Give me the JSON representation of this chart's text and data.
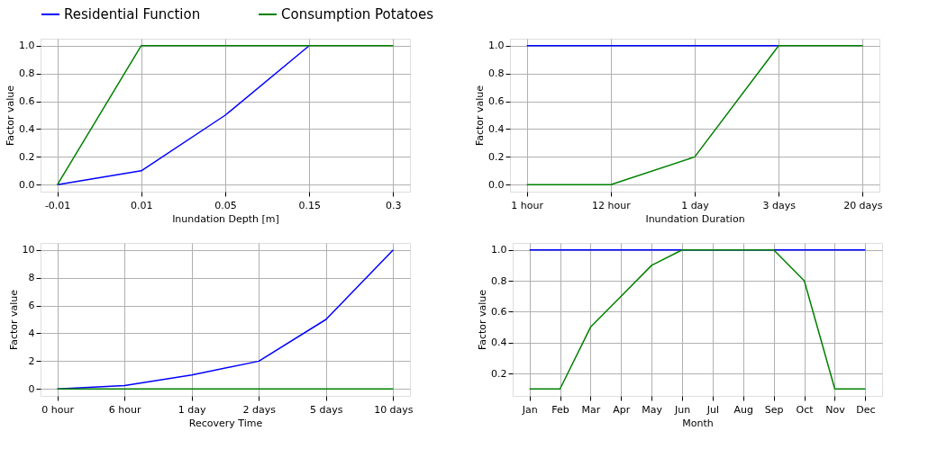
{
  "chart_data": [
    {
      "type": "line",
      "xlabel": "Inundation Depth [m]",
      "ylabel": "Factor value",
      "categories": [
        "-0.01",
        "0.01",
        "0.05",
        "0.15",
        "0.3"
      ],
      "series": [
        {
          "name": "Residential Function",
          "color": "#0000ff",
          "values": [
            0,
            0.1,
            0.5,
            1,
            null
          ]
        },
        {
          "name": "Consumption Potatoes",
          "color": "#008000",
          "values": [
            0,
            1,
            1,
            1,
            1
          ]
        }
      ],
      "ylim": [
        -0.05,
        1.05
      ],
      "yticks": [
        {
          "value": 0,
          "label": "0.0"
        },
        {
          "value": 0.2,
          "label": "0.2"
        },
        {
          "value": 0.4,
          "label": "0.4"
        },
        {
          "value": 0.6,
          "label": "0.6"
        },
        {
          "value": 0.8,
          "label": "0.8"
        },
        {
          "value": 1,
          "label": "1.0"
        }
      ],
      "grid": true,
      "legend": "top"
    },
    {
      "type": "line",
      "xlabel": "Inundation Duration",
      "ylabel": "Factor value",
      "categories": [
        "1 hour",
        "12 hour",
        "1 day",
        "3 days",
        "20 days"
      ],
      "series": [
        {
          "name": "Residential Function",
          "color": "#0000ff",
          "values": [
            1,
            1,
            1,
            1,
            null
          ]
        },
        {
          "name": "Consumption Potatoes",
          "color": "#008000",
          "values": [
            0,
            0,
            0.2,
            1,
            1
          ]
        }
      ],
      "ylim": [
        -0.05,
        1.05
      ],
      "yticks": [
        {
          "value": 0,
          "label": "0.0"
        },
        {
          "value": 0.2,
          "label": "0.2"
        },
        {
          "value": 0.4,
          "label": "0.4"
        },
        {
          "value": 0.6,
          "label": "0.6"
        },
        {
          "value": 0.8,
          "label": "0.8"
        },
        {
          "value": 1,
          "label": "1.0"
        }
      ],
      "grid": true
    },
    {
      "type": "line",
      "xlabel": "Recovery Time",
      "ylabel": "Factor value",
      "categories": [
        "0 hour",
        "6 hour",
        "1 day",
        "2 days",
        "5 days",
        "10 days"
      ],
      "series": [
        {
          "name": "Residential Function",
          "color": "#0000ff",
          "values": [
            0,
            0.25,
            1,
            2,
            5,
            10
          ]
        },
        {
          "name": "Consumption Potatoes",
          "color": "#008000",
          "values": [
            0,
            0,
            0,
            0,
            0,
            0
          ]
        }
      ],
      "ylim": [
        -0.5,
        10.5
      ],
      "yticks": [
        0,
        2,
        4,
        6,
        8,
        10
      ],
      "grid": true
    },
    {
      "type": "line",
      "xlabel": "Month",
      "ylabel": "Factor value",
      "categories": [
        "Jan",
        "Feb",
        "Mar",
        "Apr",
        "May",
        "Jun",
        "Jul",
        "Aug",
        "Sep",
        "Oct",
        "Nov",
        "Dec"
      ],
      "series": [
        {
          "name": "Residential Function",
          "color": "#0000ff",
          "values": [
            1,
            1,
            1,
            1,
            1,
            1,
            null,
            null,
            1,
            1,
            1,
            1
          ]
        },
        {
          "name": "Consumption Potatoes",
          "color": "#008000",
          "values": [
            0.1,
            0.1,
            0.5,
            0.7,
            0.9,
            1,
            1,
            1,
            1,
            0.8,
            0.1,
            0.1
          ]
        }
      ],
      "ylim": [
        0.055,
        1.045
      ],
      "yticks": [
        {
          "value": 0.2,
          "label": "0.2"
        },
        {
          "value": 0.4,
          "label": "0.4"
        },
        {
          "value": 0.6,
          "label": "0.6"
        },
        {
          "value": 0.8,
          "label": "0.8"
        },
        {
          "value": 1,
          "label": "1.0"
        }
      ],
      "grid": true
    }
  ]
}
